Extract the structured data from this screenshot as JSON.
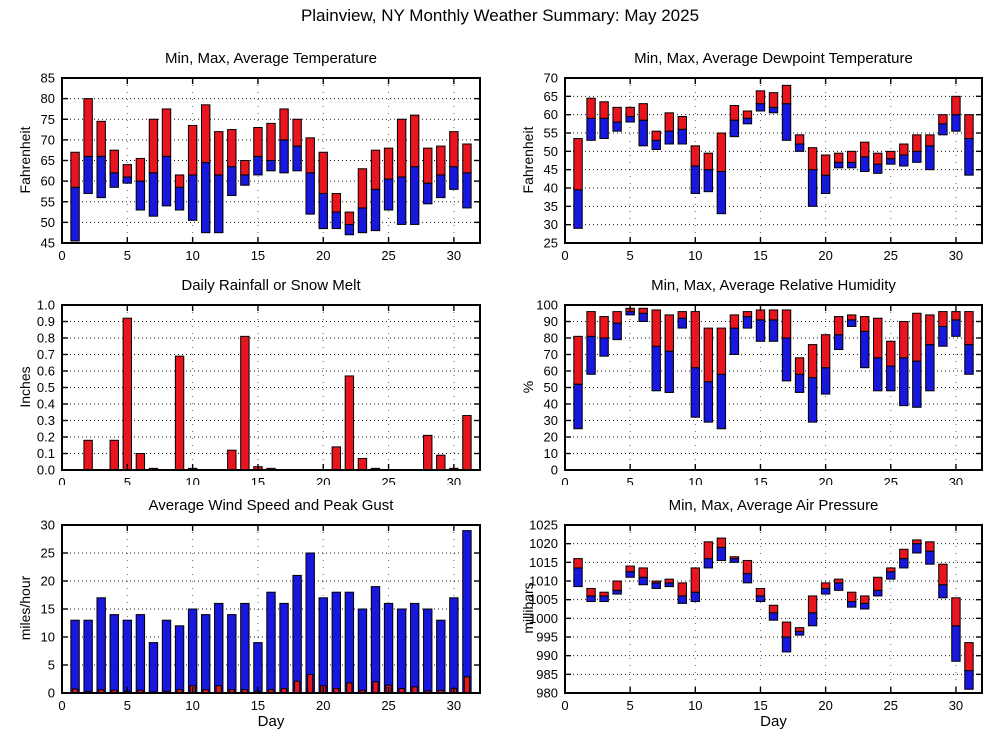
{
  "page_title": "Plainview, NY Monthly Weather Summary: May 2025",
  "xlabel": "Day",
  "colors": {
    "bar_high_red": "#e8141e",
    "bar_low_blue": "#1717dd",
    "axis": "#000000",
    "background": "#ffffff"
  },
  "shared": {
    "xlim": [
      0,
      32
    ],
    "xticks": [
      0,
      5,
      10,
      15,
      20,
      25,
      30
    ],
    "days": [
      1,
      2,
      3,
      4,
      5,
      6,
      7,
      8,
      9,
      10,
      11,
      12,
      13,
      14,
      15,
      16,
      17,
      18,
      19,
      20,
      21,
      22,
      23,
      24,
      25,
      26,
      27,
      28,
      29,
      30,
      31
    ]
  },
  "chart_data": [
    {
      "type": "range-bar",
      "title": "Min, Max, Average Temperature",
      "ylabel": "Fahrenheit",
      "ylim": [
        45,
        85
      ],
      "yticks": [
        45,
        50,
        55,
        60,
        65,
        70,
        75,
        80,
        85
      ],
      "min": [
        45.5,
        57,
        56,
        58.5,
        59.5,
        53,
        51.5,
        54,
        53,
        50.5,
        47.5,
        47.5,
        56.5,
        59,
        61.5,
        62.5,
        62,
        62.5,
        52,
        48.5,
        48.5,
        47,
        47.5,
        48,
        53,
        49.5,
        49.5,
        54.5,
        56,
        58,
        53.5
      ],
      "avg": [
        58.5,
        66,
        66,
        62,
        61,
        60,
        62,
        66,
        58.5,
        61.5,
        64.5,
        61.5,
        63.5,
        61.5,
        66,
        65,
        70,
        68.5,
        62,
        57,
        52.5,
        49.5,
        53.5,
        58,
        60.5,
        61,
        63.5,
        59.5,
        61.5,
        63.5,
        62
      ],
      "max": [
        67,
        80,
        74.5,
        67.5,
        64,
        65.5,
        75,
        77.5,
        61.5,
        73.5,
        78.5,
        72,
        72.5,
        65,
        73,
        74,
        77.5,
        75,
        70.5,
        67,
        57,
        52.5,
        63,
        67.5,
        68,
        75,
        76,
        68,
        68.5,
        72,
        69
      ]
    },
    {
      "type": "range-bar",
      "title": "Min, Max, Average Dewpoint Temperature",
      "ylabel": "Fahrenheit",
      "ylim": [
        25,
        70
      ],
      "yticks": [
        25,
        30,
        35,
        40,
        45,
        50,
        55,
        60,
        65,
        70
      ],
      "min": [
        29,
        53,
        53.5,
        55.5,
        58,
        51.5,
        50.5,
        52,
        52,
        38.5,
        39,
        33,
        54,
        57.5,
        61,
        60.5,
        53,
        50,
        35,
        38.5,
        45.5,
        45.5,
        44.5,
        44,
        46.5,
        46,
        47,
        45,
        54.5,
        55.5,
        43.5
      ],
      "avg": [
        39.5,
        59,
        59,
        58,
        59.5,
        58.5,
        53,
        55.5,
        56,
        46,
        45,
        44.5,
        58.5,
        59,
        63,
        62,
        63,
        52,
        45,
        43.5,
        47,
        47,
        48.5,
        46.5,
        48,
        49,
        50,
        51.5,
        57.5,
        60,
        53.5
      ],
      "max": [
        53.5,
        64.5,
        63.5,
        62,
        62,
        63,
        55.5,
        60.5,
        59.5,
        51.5,
        49.5,
        55,
        62.5,
        61,
        66.5,
        66,
        68,
        54.5,
        51,
        49,
        49.5,
        50,
        52.5,
        49.5,
        50,
        52,
        54.5,
        54.5,
        60,
        65,
        60
      ]
    },
    {
      "type": "bar",
      "title": "Daily Rainfall or Snow Melt",
      "ylabel": "Inches",
      "ylim": [
        0,
        1.0
      ],
      "yticks": [
        "0.0",
        "0.1",
        "0.2",
        "0.3",
        "0.4",
        "0.5",
        "0.6",
        "0.7",
        "0.8",
        "0.9",
        "1.0"
      ],
      "values": [
        0,
        0.18,
        0,
        0.18,
        0.92,
        0.1,
        0.01,
        0,
        0.69,
        0.01,
        0,
        0,
        0.12,
        0.81,
        0.02,
        0.01,
        0,
        0,
        0,
        0,
        0.14,
        0.57,
        0.07,
        0.01,
        0,
        0,
        0,
        0.21,
        0.09,
        0.01,
        0.33
      ]
    },
    {
      "type": "range-bar",
      "title": "Min, Max, Average Relative Humidity",
      "ylabel": "%",
      "ylim": [
        0,
        100
      ],
      "yticks": [
        0,
        10,
        20,
        30,
        40,
        50,
        60,
        70,
        80,
        90,
        100
      ],
      "min": [
        25,
        58,
        69,
        79,
        94,
        90,
        48,
        47,
        86,
        32,
        29,
        25,
        70,
        86,
        78,
        78,
        54,
        47,
        29,
        46,
        73,
        87,
        62,
        48,
        48,
        39,
        38,
        48,
        75,
        81,
        58
      ],
      "avg": [
        52,
        81,
        80,
        89,
        96,
        95,
        75,
        72,
        92,
        62,
        53.5,
        58,
        86,
        93,
        91,
        91,
        80,
        58,
        56,
        62,
        82,
        91,
        84,
        68,
        63,
        68,
        66,
        76,
        87,
        91,
        76
      ],
      "max": [
        81,
        96,
        93,
        96,
        98,
        98,
        97,
        94,
        96,
        96,
        86,
        86,
        94,
        96,
        97,
        97,
        97,
        68,
        76,
        82,
        93,
        94,
        93,
        92,
        78,
        90,
        95,
        94,
        96,
        96,
        96
      ]
    },
    {
      "type": "overlay-bar",
      "title": "Average Wind Speed and Peak Gust",
      "ylabel": "miles/hour",
      "ylim": [
        0,
        30
      ],
      "yticks": [
        0,
        5,
        10,
        15,
        20,
        25,
        30
      ],
      "gust": [
        13,
        13,
        17,
        14,
        13,
        14,
        9,
        13,
        12,
        15,
        14,
        16,
        14,
        16,
        9,
        18,
        16,
        21,
        25,
        17,
        18,
        18,
        15,
        19,
        16,
        15,
        16,
        15,
        13,
        17,
        29
      ],
      "avg": [
        0.7,
        0.3,
        0.6,
        0.5,
        0.3,
        0.5,
        0.1,
        0.3,
        0.6,
        1.3,
        0.6,
        1.3,
        0.6,
        0.6,
        0.3,
        0.6,
        0.8,
        2.1,
        3.3,
        1.3,
        0.8,
        1.8,
        0.5,
        2.0,
        1.4,
        0.8,
        1.1,
        0.4,
        0.5,
        0.8,
        2.9
      ]
    },
    {
      "type": "range-bar",
      "title": "Min, Max, Average Air Pressure",
      "ylabel": "millibars",
      "ylim": [
        980,
        1025
      ],
      "yticks": [
        980,
        985,
        990,
        995,
        1000,
        1005,
        1010,
        1015,
        1020,
        1025
      ],
      "min": [
        1008.5,
        1004.5,
        1004.5,
        1006.5,
        1011,
        1009,
        1008,
        1008.5,
        1004,
        1004.5,
        1013.5,
        1015.5,
        1015,
        1009.5,
        1004.5,
        999.5,
        991,
        995.5,
        998,
        1006.5,
        1007.5,
        1003,
        1002.5,
        1006,
        1010.5,
        1013.5,
        1017.5,
        1014.5,
        1005.5,
        988.5,
        981
      ],
      "avg": [
        1013.5,
        1006,
        1006,
        1007.5,
        1012.5,
        1011,
        1009.5,
        1009.5,
        1006,
        1007,
        1016,
        1019,
        1016,
        1012,
        1006,
        1001.5,
        995,
        996.5,
        1001.5,
        1008,
        1009.5,
        1004.5,
        1004,
        1007.5,
        1012.5,
        1016,
        1020,
        1018,
        1009,
        998,
        986
      ],
      "max": [
        1016,
        1008,
        1007,
        1010,
        1014,
        1013.5,
        1010,
        1010.5,
        1009.5,
        1013.5,
        1020.5,
        1021.5,
        1016.5,
        1015.5,
        1008,
        1003.5,
        999,
        997.5,
        1006,
        1009.5,
        1010.5,
        1007,
        1006,
        1011,
        1013.5,
        1018.5,
        1021,
        1020.5,
        1014.5,
        1005.5,
        993.5
      ]
    }
  ]
}
